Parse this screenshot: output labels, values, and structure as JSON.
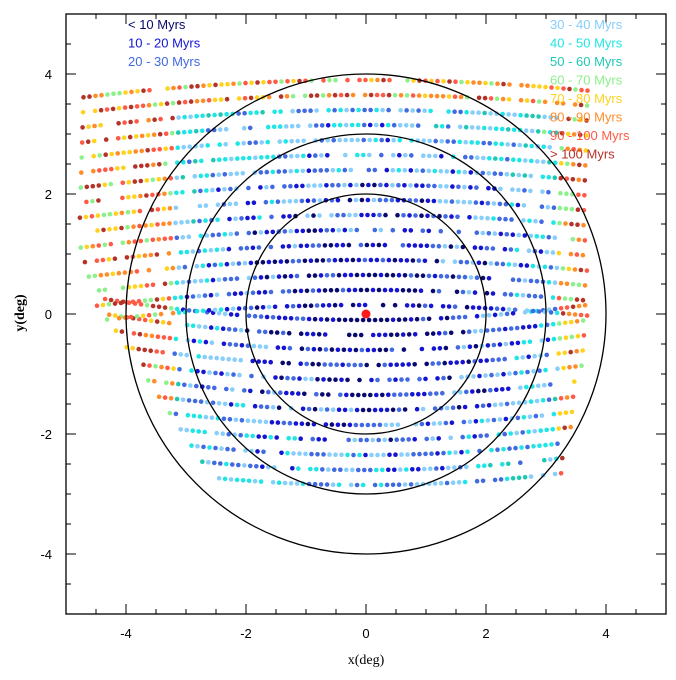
{
  "chart_data": {
    "type": "scatter",
    "title": "",
    "xlabel": "x(deg)",
    "ylabel": "y(deg)",
    "xlim": [
      -5,
      5
    ],
    "ylim": [
      -5,
      5
    ],
    "x_ticks": [
      -4,
      -2,
      0,
      2,
      4
    ],
    "y_ticks": [
      -4,
      -2,
      0,
      2,
      4
    ],
    "x_tick_labels": [
      "-4",
      "-2",
      "0",
      "2",
      "4"
    ],
    "y_tick_labels": [
      "-4",
      "-2",
      "0",
      "2",
      "4"
    ],
    "grid": false,
    "legend_placement": "top-left and top-right",
    "center_marker": {
      "x": 0,
      "y": 0,
      "color": "#ff1a1a"
    },
    "circles": [
      {
        "cx": 0,
        "cy": 0,
        "r": 2
      },
      {
        "cx": 0,
        "cy": 0,
        "r": 3
      },
      {
        "cx": 0,
        "cy": 0,
        "r": 4
      }
    ],
    "scan_rows": {
      "y_start": -2.85,
      "y_step": 0.25,
      "count": 28,
      "x_step": 0.1,
      "curvature": 0.045,
      "half_width_base": 4.35,
      "half_width_slope": 0.12,
      "x_shift": -0.25
    },
    "series": [
      {
        "name": "< 10 Myrs",
        "color": "#0a0a6e",
        "legend_side": "left"
      },
      {
        "name": "10 - 20 Myrs",
        "color": "#1414d2",
        "legend_side": "left"
      },
      {
        "name": "20 - 30 Myrs",
        "color": "#4169e1",
        "legend_side": "left"
      },
      {
        "name": "30 - 40 Myrs",
        "color": "#87cefa",
        "legend_side": "right"
      },
      {
        "name": "40 - 50 Myrs",
        "color": "#1ee6e6",
        "legend_side": "right"
      },
      {
        "name": "50 - 60 Myrs",
        "color": "#20c8b4",
        "legend_side": "right"
      },
      {
        "name": "60 - 70 Myrs",
        "color": "#8cf08c",
        "legend_side": "right"
      },
      {
        "name": "70 - 80 Myrs",
        "color": "#ffd21e",
        "legend_side": "right"
      },
      {
        "name": "80 - 90 Myrs",
        "color": "#ff8c28",
        "legend_side": "right"
      },
      {
        "name": "90 - 100 Myrs",
        "color": "#ff5a46",
        "legend_side": "right"
      },
      {
        "name": "> 100 Myrs",
        "color": "#b43228",
        "legend_side": "right"
      }
    ]
  }
}
